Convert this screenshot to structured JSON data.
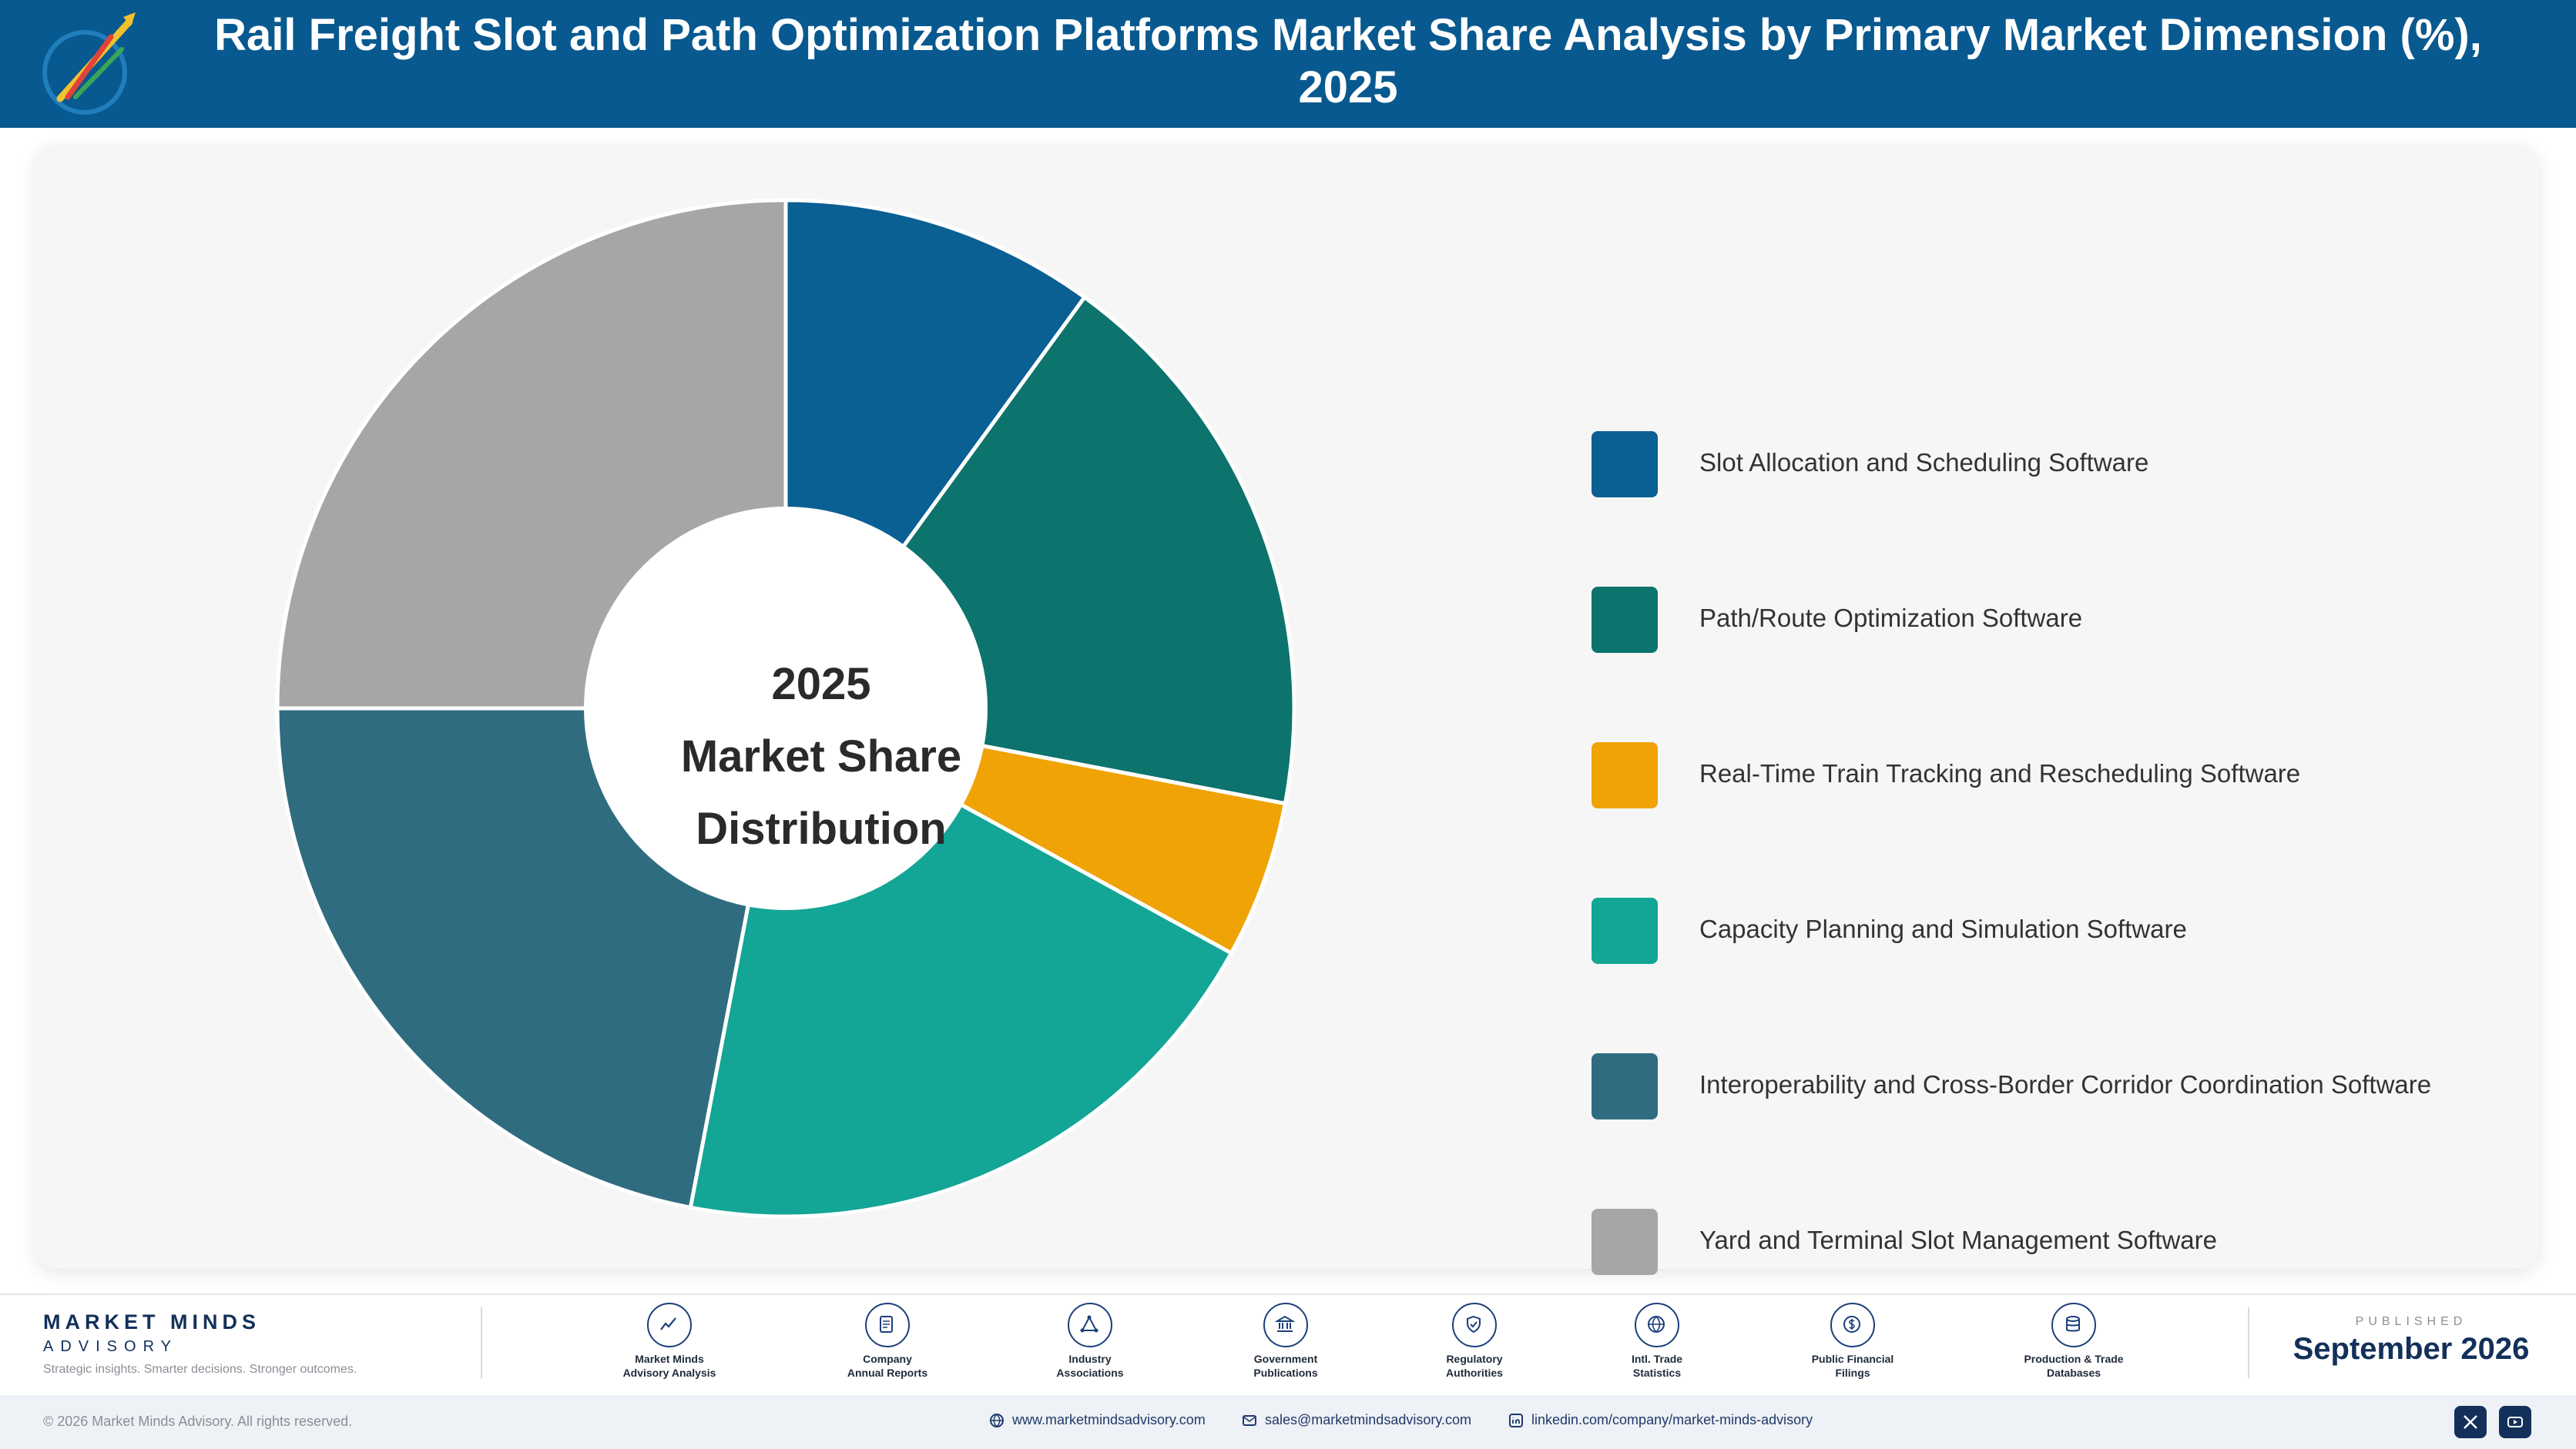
{
  "header": {
    "title": "Rail Freight Slot and Path Optimization Platforms Market Share Analysis by Primary Market Dimension (%), 2025",
    "logo_icon": "market-minds-logo-icon"
  },
  "chart_data": {
    "type": "donut",
    "title": "Rail Freight Slot and Path Optimization Platforms Market Share Analysis by Primary Market Dimension (%), 2025",
    "center_label": [
      "2025",
      "Market Share",
      "Distribution"
    ],
    "categories": [
      "Slot Allocation and Scheduling Software",
      "Path/Route Optimization Software",
      "Real-Time Train Tracking and Rescheduling Software",
      "Capacity Planning and Simulation Software",
      "Interoperability and Cross-Border Corridor Coordination Software",
      "Yard and Terminal Slot Management Software"
    ],
    "values": [
      10,
      18,
      5,
      20,
      22,
      25
    ],
    "colors": [
      "#0a5f93",
      "#0c736d",
      "#efa305",
      "#13a596",
      "#2f6c80",
      "#a6a6a6"
    ],
    "legend_position": "right",
    "start_angle_deg": 0,
    "direction": "clockwise"
  },
  "footer": {
    "brand_name": "MARKET MINDS",
    "brand_sub": "ADVISORY",
    "tagline": "Strategic insights. Smarter decisions. Stronger outcomes.",
    "sources": [
      {
        "label": "Market Minds\nAdvisory Analysis",
        "icon": "chart-line-icon"
      },
      {
        "label": "Company\nAnnual Reports",
        "icon": "document-icon"
      },
      {
        "label": "Industry\nAssociations",
        "icon": "network-icon"
      },
      {
        "label": "Government\nPublications",
        "icon": "government-building-icon"
      },
      {
        "label": "Regulatory\nAuthorities",
        "icon": "shield-check-icon"
      },
      {
        "label": "Intl. Trade\nStatistics",
        "icon": "globe-icon"
      },
      {
        "label": "Public Financial\nFilings",
        "icon": "dollar-coin-icon"
      },
      {
        "label": "Production & Trade\nDatabases",
        "icon": "database-icon"
      }
    ],
    "published_label": "PUBLISHED",
    "published_date": "September 2026"
  },
  "bottom_bar": {
    "copyright": "© 2026 Market Minds Advisory. All rights reserved.",
    "website": "www.marketmindsadvisory.com",
    "email": "sales@marketmindsadvisory.com",
    "linkedin": "linkedin.com/company/market-minds-advisory",
    "social_icons": [
      "x-icon",
      "youtube-icon"
    ]
  }
}
